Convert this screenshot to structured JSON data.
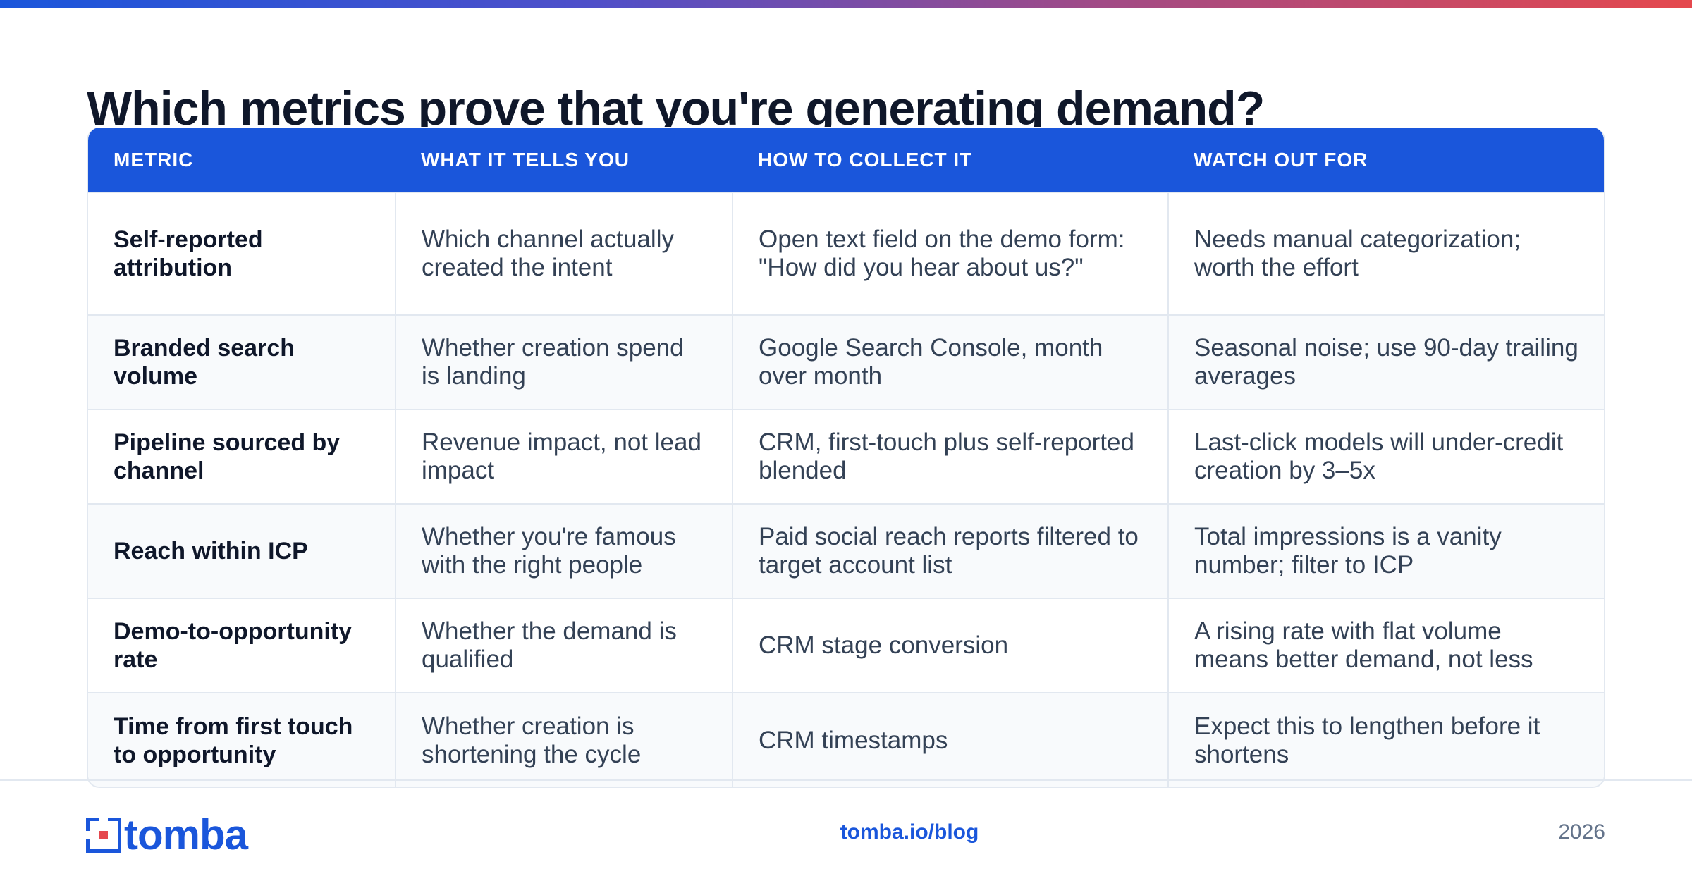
{
  "title": "Which metrics prove that you're generating demand?",
  "colors": {
    "brand": "#1a56db",
    "header_bg": "#1a56db",
    "accent_red": "#e5484d"
  },
  "table": {
    "headers": [
      "METRIC",
      "WHAT IT TELLS YOU",
      "HOW TO COLLECT IT",
      "WATCH OUT FOR"
    ],
    "rows": [
      {
        "metric": "Self-reported attribution",
        "tells": "Which channel actually created the intent",
        "collect": "Open text field on the demo form: \"How did you hear about us?\"",
        "watch": "Needs manual categorization; worth the effort"
      },
      {
        "metric": "Branded search volume",
        "tells": "Whether creation spend is landing",
        "collect": "Google Search Console, month over month",
        "watch": "Seasonal noise; use 90-day trailing averages"
      },
      {
        "metric": "Pipeline sourced by channel",
        "tells": "Revenue impact, not lead impact",
        "collect": "CRM, first-touch plus self-reported blended",
        "watch": "Last-click models will under-credit creation by 3–5x"
      },
      {
        "metric": "Reach within ICP",
        "tells": "Whether you're famous with the right people",
        "collect": "Paid social reach reports filtered to target account list",
        "watch": "Total impressions is a vanity number; filter to ICP"
      },
      {
        "metric": "Demo-to-opportunity rate",
        "tells": "Whether the demand is qualified",
        "collect": "CRM stage conversion",
        "watch": "A rising rate with flat volume means better demand, not less"
      },
      {
        "metric": "Time from first touch to opportunity",
        "tells": "Whether creation is shortening the cycle",
        "collect": "CRM timestamps",
        "watch": "Expect this to lengthen before it shortens"
      }
    ]
  },
  "footer": {
    "logo_text": "tomba",
    "logo_icon": "tomba-logo-icon",
    "link": "tomba.io/blog",
    "year": "2026"
  }
}
